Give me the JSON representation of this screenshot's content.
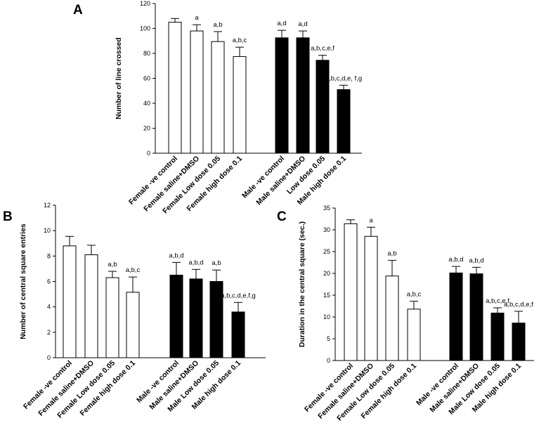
{
  "chart_data": [
    {
      "panel": "A",
      "type": "bar",
      "ylabel": "Number of line crossed",
      "ylim": [
        0,
        120
      ],
      "yticks": [
        0,
        20,
        40,
        60,
        80,
        100,
        120
      ],
      "categories": [
        "Female -ve control",
        "Female saline+DMSO",
        "Female Low dose 0.05",
        "Female high dose 0.1",
        "Male -ve control",
        "Male saline+DMSO",
        "Low dose 0.05",
        "Male high dose 0.1"
      ],
      "values": [
        105,
        98,
        89.5,
        77.5,
        92.5,
        92.5,
        74.5,
        51
      ],
      "errors": [
        3,
        5,
        8,
        7.5,
        6,
        5.5,
        4,
        3.5
      ],
      "fills": [
        "#ffffff",
        "#ffffff",
        "#ffffff",
        "#ffffff",
        "#000000",
        "#000000",
        "#000000",
        "#000000"
      ],
      "annotations": [
        "",
        "a",
        "a,b",
        "a,b,c",
        "a,d",
        "a,d",
        "a,b,c,e,f",
        "a,b,c,d,e, f,g"
      ]
    },
    {
      "panel": "B",
      "type": "bar",
      "ylabel": "Number of central square entries",
      "ylim": [
        0,
        12
      ],
      "yticks": [
        0,
        2,
        4,
        6,
        8,
        10,
        12
      ],
      "categories": [
        "Female -ve control",
        "Female saline+DMSO",
        "Female Low dose 0.05",
        "Female high dose 0.1",
        "Male -ve control",
        "Male saline+DMSO",
        "Male Low dose 0.05",
        "Male high dose 0.1"
      ],
      "values": [
        8.8,
        8.1,
        6.3,
        5.15,
        6.5,
        6.2,
        6.0,
        3.6
      ],
      "errors": [
        0.75,
        0.75,
        0.5,
        1.2,
        1.0,
        0.75,
        0.9,
        0.75
      ],
      "fills": [
        "#ffffff",
        "#ffffff",
        "#ffffff",
        "#ffffff",
        "#000000",
        "#000000",
        "#000000",
        "#000000"
      ],
      "annotations": [
        "",
        "",
        "a,b",
        "a,b,c",
        "a,b,d",
        "a,b,d",
        "a,b",
        "a,b,c,d,e,f,g"
      ]
    },
    {
      "panel": "C",
      "type": "bar",
      "ylabel": "Duration in the central square (sec.)",
      "ylim": [
        0,
        35
      ],
      "yticks": [
        0,
        5,
        10,
        15,
        20,
        25,
        30,
        35
      ],
      "categories": [
        "Female -ve control",
        "Female saline+DMSO",
        "Female Low dose 0.05",
        "Female high dose 0.1",
        "Male -ve control",
        "Male saline+DMSO",
        "Male Low dose 0.05",
        "Male high dose 0.1"
      ],
      "values": [
        31.4,
        28.5,
        19.4,
        11.8,
        20.1,
        19.9,
        10.9,
        8.6
      ],
      "errors": [
        0.9,
        2.1,
        3.6,
        1.8,
        1.5,
        1.5,
        1.2,
        2.7
      ],
      "fills": [
        "#ffffff",
        "#ffffff",
        "#ffffff",
        "#ffffff",
        "#000000",
        "#000000",
        "#000000",
        "#000000"
      ],
      "annotations": [
        "",
        "a",
        "a,b",
        "a,b,c",
        "a,b,d",
        "a,b,d",
        "a,b,c,e,f",
        "a,b,c,d,e,f"
      ]
    }
  ]
}
